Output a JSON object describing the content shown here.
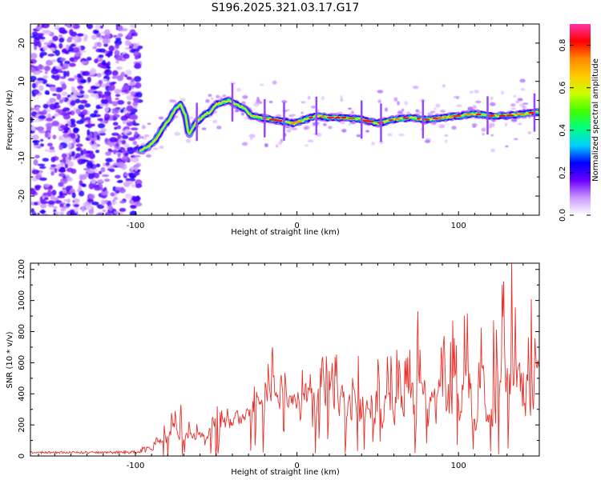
{
  "title": "S196.2025.321.03.17.G17",
  "colors": {
    "snr_line": "#e8302a",
    "frame": "#000000",
    "background": "#ffffff"
  },
  "chart_data": [
    {
      "type": "heatmap",
      "name": "spectrogram",
      "xlabel": "Height of straight line (km)",
      "ylabel": "Frequency (Hz)",
      "xlim": [
        -165,
        150
      ],
      "ylim": [
        -25,
        25
      ],
      "xticks": [
        -100,
        0,
        100
      ],
      "xtick_labels": [
        "-100",
        "0",
        "100"
      ],
      "yticks": [
        -20,
        -10,
        0,
        10,
        20
      ],
      "ytick_labels": [
        "-20",
        "-10",
        "0",
        "10",
        "20"
      ],
      "noise_region_xlim": [
        -165,
        -97
      ],
      "ridge": {
        "x": [
          -97,
          -92,
          -87,
          -83,
          -79,
          -75,
          -72,
          -69,
          -67,
          -63,
          -58,
          -54,
          -50,
          -46,
          -42,
          -38,
          -33,
          -28,
          -22,
          -15,
          -8,
          -2,
          5,
          12,
          20,
          30,
          40,
          50,
          60,
          70,
          80,
          90,
          100,
          110,
          120,
          130,
          140,
          150
        ],
        "freq": [
          -8,
          -7,
          -5,
          -2,
          0,
          3,
          4,
          1,
          -4,
          -1,
          1,
          2,
          4,
          4.5,
          5,
          4,
          3,
          1,
          0.5,
          0,
          -0.5,
          -1,
          0,
          1,
          0.5,
          0.5,
          0,
          -1,
          0,
          0.5,
          0,
          0.5,
          1,
          1.5,
          1,
          1,
          1.5,
          2
        ]
      },
      "colorbar": {
        "label": "Normalized spectral amplitude",
        "range": [
          0,
          0.9
        ],
        "ticks": [
          0.0,
          0.2,
          0.4,
          0.6,
          0.8
        ],
        "tick_labels": [
          "0.0",
          "0.2",
          "0.4",
          "0.6",
          "0.8"
        ],
        "colormap": [
          "#ffffff",
          "#cc99ff",
          "#6a00ff",
          "#0000ff",
          "#00d0ff",
          "#00ff80",
          "#40ff00",
          "#ccff00",
          "#ffcc00",
          "#ff8800",
          "#ff0000",
          "#ff33aa"
        ]
      }
    },
    {
      "type": "line",
      "name": "snr",
      "xlabel": "Height of straight line (km)",
      "ylabel": "SNR (10 * v/v)",
      "xlim": [
        -165,
        150
      ],
      "ylim": [
        0,
        1240
      ],
      "xticks": [
        -100,
        0,
        100
      ],
      "xtick_labels": [
        "-100",
        "0",
        "100"
      ],
      "yticks": [
        0,
        200,
        400,
        600,
        800,
        1000,
        1200
      ],
      "ytick_labels": [
        "0",
        "200",
        "400",
        "600",
        "800",
        "1000",
        "1200"
      ],
      "envelope": {
        "x": [
          -165,
          -140,
          -120,
          -100,
          -90,
          -85,
          -80,
          -75,
          -70,
          -65,
          -60,
          -55,
          -50,
          -45,
          -40,
          -35,
          -30,
          -25,
          -20,
          -15,
          -10,
          -5,
          0,
          5,
          10,
          15,
          20,
          25,
          30,
          35,
          40,
          45,
          50,
          55,
          60,
          65,
          70,
          75,
          80,
          85,
          90,
          95,
          100,
          105,
          110,
          115,
          120,
          125,
          130,
          135,
          140,
          145,
          150
        ],
        "low": [
          15,
          15,
          15,
          15,
          30,
          40,
          60,
          70,
          80,
          80,
          90,
          80,
          80,
          100,
          150,
          180,
          200,
          230,
          250,
          260,
          260,
          260,
          270,
          240,
          200,
          200,
          180,
          150,
          120,
          100,
          100,
          100,
          100,
          100,
          80,
          80,
          100,
          100,
          100,
          80,
          80,
          100,
          100,
          100,
          80,
          80,
          60,
          60,
          60,
          60,
          60,
          60,
          40
        ],
        "high": [
          30,
          30,
          30,
          35,
          90,
          150,
          250,
          320,
          270,
          230,
          200,
          220,
          320,
          350,
          400,
          350,
          380,
          500,
          550,
          700,
          560,
          520,
          600,
          680,
          650,
          650,
          700,
          700,
          650,
          650,
          680,
          700,
          750,
          700,
          750,
          720,
          750,
          800,
          850,
          850,
          900,
          900,
          950,
          950,
          1000,
          1000,
          1050,
          1050,
          1240,
          1100,
          1000,
          1000,
          900
        ]
      },
      "peaks": [
        {
          "x": 133,
          "y": 1240
        },
        {
          "x": 145,
          "y": 1010
        },
        {
          "x": 75,
          "y": 930
        },
        {
          "x": -15,
          "y": 700
        },
        {
          "x": -72,
          "y": 330
        }
      ]
    }
  ]
}
